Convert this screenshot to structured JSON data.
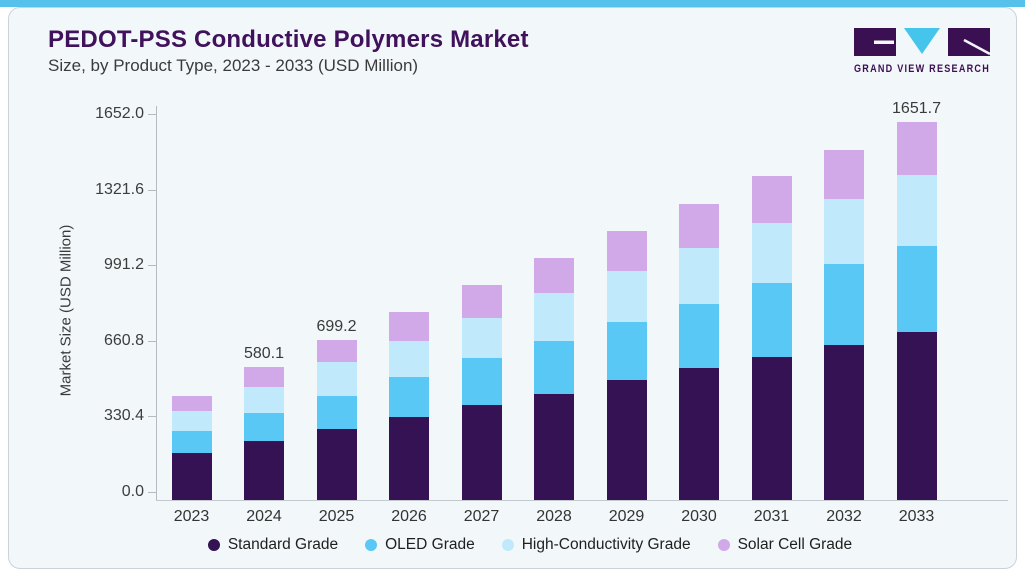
{
  "header": {
    "title": "PEDOT-PSS Conductive Polymers Market",
    "subtitle": "Size, by Product Type, 2023 - 2033 (USD Million)",
    "brand": "GRAND VIEW RESEARCH"
  },
  "colors": {
    "top_strip": "#56C2EC",
    "card_bg": "#F2F7FA",
    "title": "#40125C",
    "logo_purple": "#3B1053",
    "logo_blue": "#45C4EC"
  },
  "chart_data": {
    "type": "bar",
    "stacked": true,
    "title": "PEDOT-PSS Conductive Polymers Market Size, by Product Type, 2023 - 2033 (USD Million)",
    "xlabel": "",
    "ylabel": "Market Size (USD Million)",
    "ylim": [
      0,
      1652.0
    ],
    "ytick_values": [
      0.0,
      330.4,
      660.8,
      991.2,
      1321.6,
      1652.0
    ],
    "ytick_labels": [
      "0.0",
      "330.4",
      "660.8",
      "991.2",
      "1321.6",
      "1652.0"
    ],
    "grid": false,
    "legend_position": "bottom",
    "categories": [
      "2023",
      "2024",
      "2025",
      "2026",
      "2027",
      "2028",
      "2029",
      "2030",
      "2031",
      "2032",
      "2033"
    ],
    "series": [
      {
        "name": "Standard Grade",
        "color": "#341253",
        "values": [
          205.1,
          257.4,
          309.3,
          364.8,
          415.8,
          463.8,
          524.9,
          575.9,
          626.5,
          677.6,
          736.0
        ]
      },
      {
        "name": "OLED Grade",
        "color": "#5AC8F5",
        "values": [
          95.9,
          123.5,
          147.1,
          174.5,
          203.8,
          232.5,
          254.3,
          280.6,
          321.6,
          353.4,
          375.5
        ]
      },
      {
        "name": "High-Conductivity Grade",
        "color": "#C0E9FB",
        "values": [
          89.9,
          112.1,
          145.7,
          157.0,
          174.5,
          208.1,
          222.6,
          244.3,
          261.8,
          286.6,
          308.5
        ]
      },
      {
        "name": "Solar Cell Grade",
        "color": "#D2A9E8",
        "values": [
          65.5,
          87.1,
          97.1,
          123.9,
          145.3,
          151.4,
          174.5,
          195.0,
          206.3,
          212.1,
          231.7
        ]
      }
    ],
    "bar_labels": [
      "",
      "580.1",
      "699.2",
      "",
      "",
      "",
      "",
      "",
      "",
      "",
      "1651.7"
    ]
  }
}
